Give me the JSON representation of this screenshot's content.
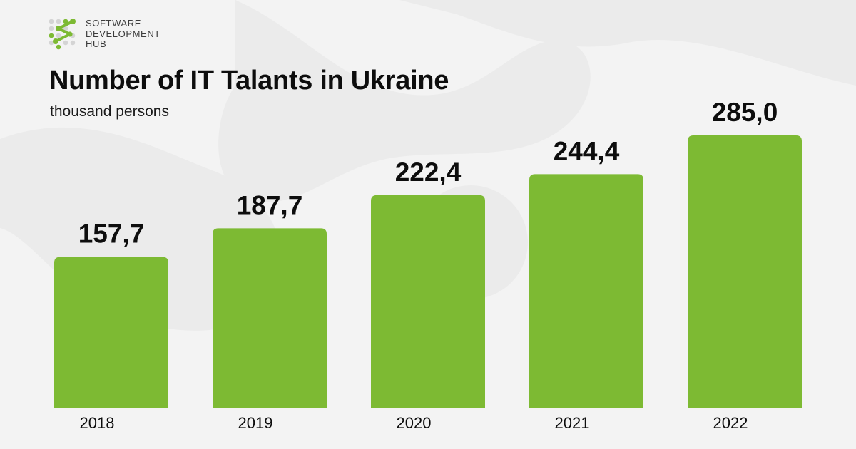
{
  "brand": {
    "logo_icon": "sdh-network-logo-icon",
    "lines": [
      "SOFTWARE",
      "DEVELOPMENT",
      "HUB"
    ],
    "accent_color": "#7dba33",
    "gray_color": "#d4d4d4"
  },
  "chart_data": {
    "type": "bar",
    "title": "Number of IT Talants in Ukraine",
    "subtitle": "thousand persons",
    "categories": [
      "2018",
      "2019",
      "2020",
      "2021",
      "2022"
    ],
    "values": [
      157.7,
      187.7,
      222.4,
      244.4,
      285.0
    ],
    "value_labels": [
      "157,7",
      "187,7",
      "222,4",
      "244,4",
      "285,0"
    ],
    "bar_color": "#7dba33",
    "xlabel": "",
    "ylabel": "",
    "grid": false,
    "legend": "none"
  }
}
